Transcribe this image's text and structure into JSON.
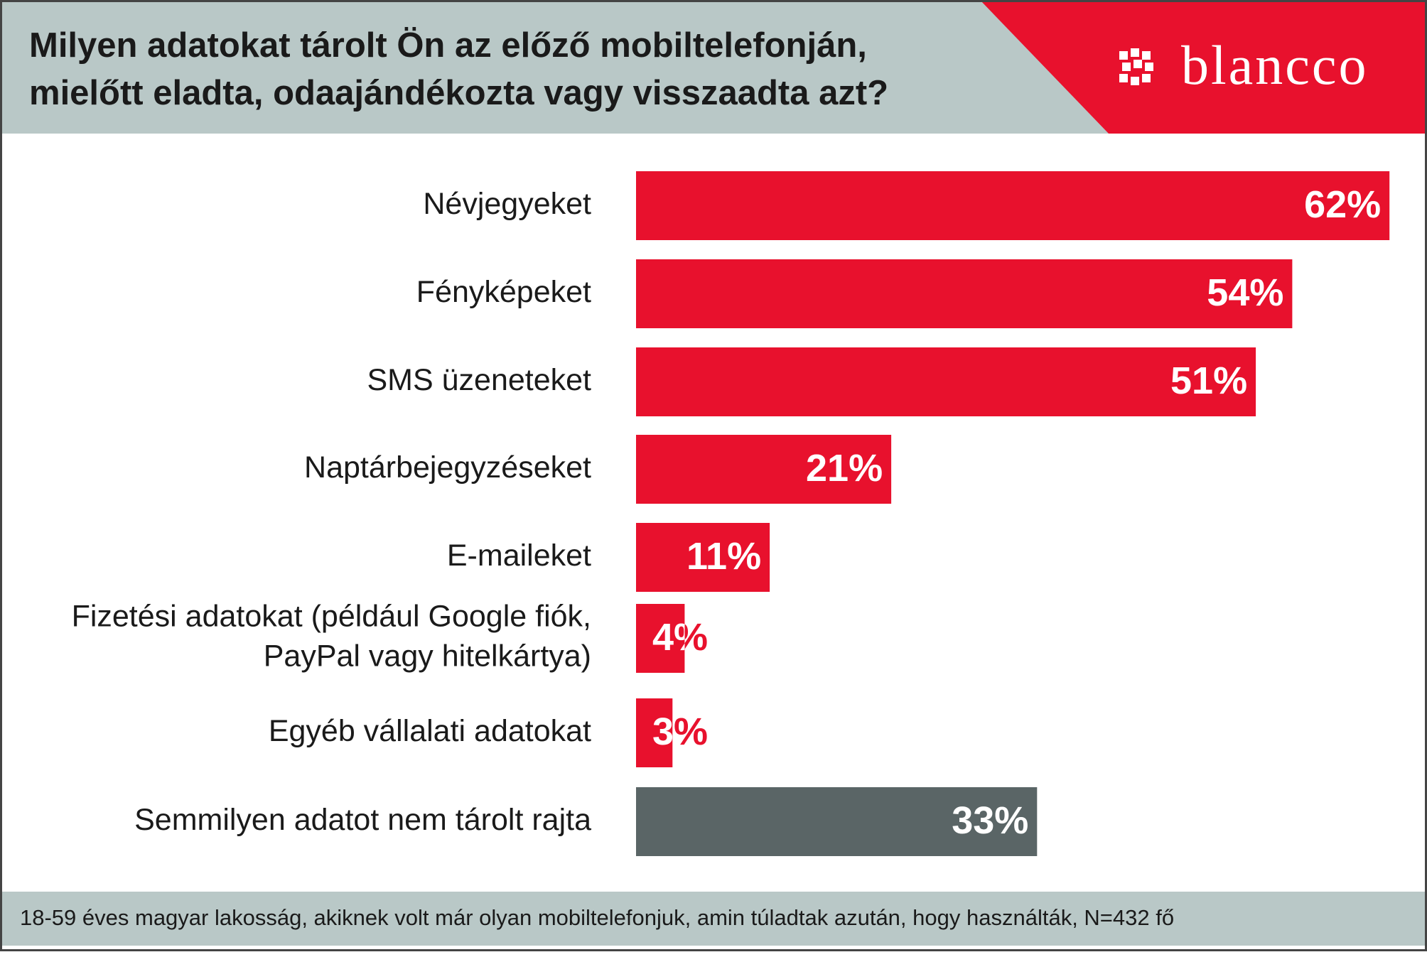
{
  "chart_data": {
    "type": "bar",
    "orientation": "horizontal",
    "title": [
      "Milyen adatokat tárolt Ön az előző mobiltelefonján,",
      "mielőtt eladta, odaajándékozta vagy visszaadta azt?"
    ],
    "brand": "blancco",
    "categories": [
      "Névjegyeket",
      "Fényképeket",
      "SMS üzeneteket",
      "Naptárbejegyzéseket",
      "E-maileket",
      "Fizetési adatokat (például Google fiók,\nPayPal vagy hitelkártya)",
      "Egyéb vállalati adatokat",
      "Semmilyen adatot nem tárolt rajta"
    ],
    "values": [
      62,
      54,
      51,
      21,
      11,
      4,
      3,
      33
    ],
    "value_labels": [
      "62%",
      "54%",
      "51%",
      "21%",
      "11%",
      "4%",
      "3%",
      "33%"
    ],
    "colors": [
      "#e8112d",
      "#e8112d",
      "#e8112d",
      "#e8112d",
      "#e8112d",
      "#e8112d",
      "#e8112d",
      "#5a6566"
    ],
    "footnote": "18-59 éves magyar lakosság, akiknek volt már olyan mobiltelefonjuk, amin túladtak azután, hogy használták, N=432 fő"
  }
}
